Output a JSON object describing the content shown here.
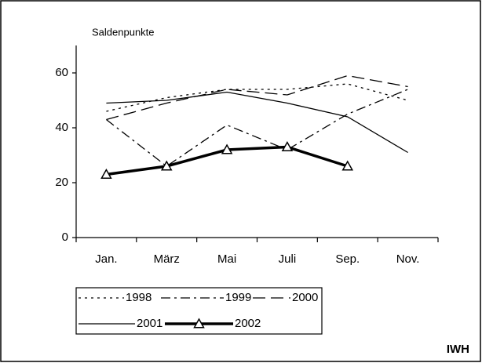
{
  "chart_data": {
    "type": "line",
    "y_label": "Saldenpunkte",
    "source": "IWH",
    "categories": [
      "Jan.",
      "März",
      "Mai",
      "Juli",
      "Sep.",
      "Nov."
    ],
    "ylim": [
      0,
      70
    ],
    "yticks": [
      0,
      20,
      40,
      60
    ],
    "series": [
      {
        "name": "1998",
        "color": "#000000",
        "dash": "3,5",
        "width": 1.3,
        "values": [
          46,
          51,
          54,
          54,
          56,
          50
        ]
      },
      {
        "name": "1999",
        "color": "#000000",
        "dash": "12,5,3,5",
        "width": 1.3,
        "values": [
          43,
          26,
          41,
          32,
          45,
          54
        ]
      },
      {
        "name": "2000",
        "color": "#000000",
        "dash": "16,7",
        "width": 1.3,
        "values": [
          43,
          49,
          54,
          52,
          59,
          55
        ]
      },
      {
        "name": "2001",
        "color": "#000000",
        "dash": "none",
        "width": 1.3,
        "values": [
          49,
          50,
          53,
          49,
          44,
          31
        ]
      },
      {
        "name": "2002",
        "color": "#000000",
        "dash": "none",
        "width": 3.5,
        "marker": "triangle",
        "values": [
          23,
          26,
          32,
          33,
          26,
          null
        ]
      }
    ]
  }
}
